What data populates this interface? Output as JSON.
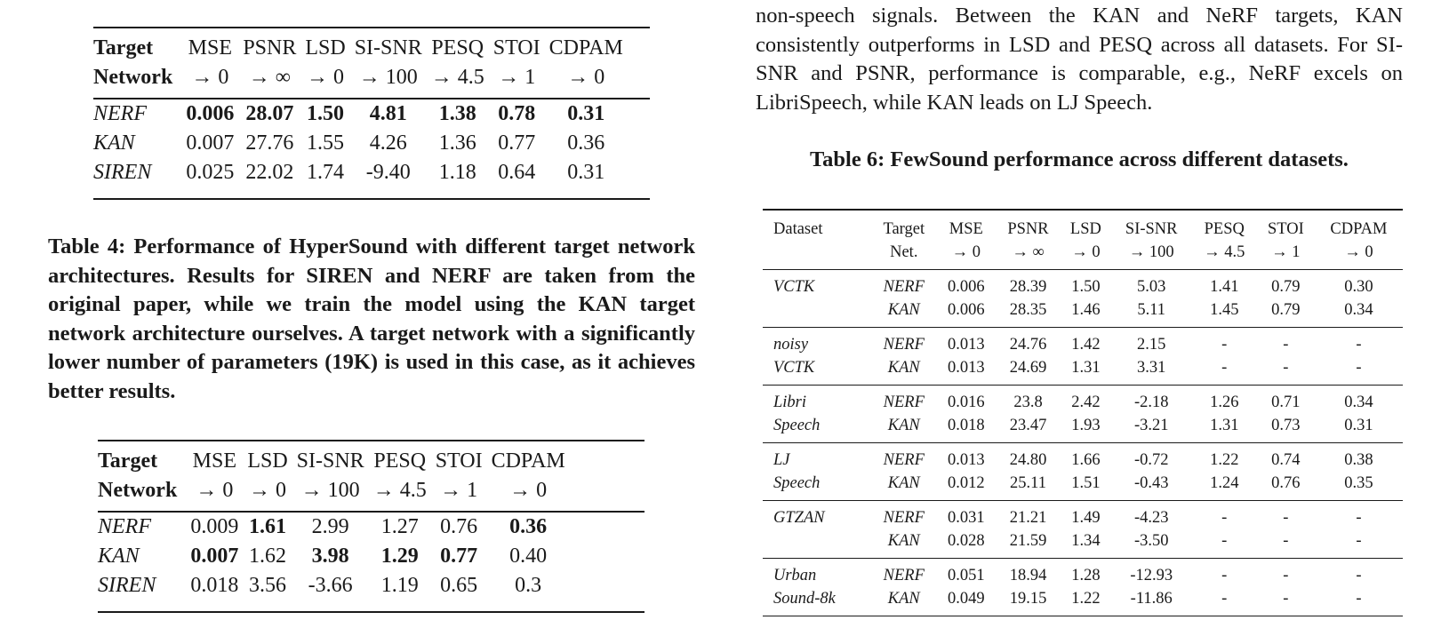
{
  "table3": {
    "header_row1": [
      "Target",
      "MSE",
      "PSNR",
      "LSD",
      "SI-SNR",
      "PESQ",
      "STOI",
      "CDPAM"
    ],
    "header_row2": [
      "Network",
      "→ 0",
      "→ ∞",
      "→ 0",
      "→ 100",
      "→ 4.5",
      "→ 1",
      "→ 0"
    ],
    "rows": [
      [
        "NERF",
        "0.006",
        "28.07",
        "1.50",
        "4.81",
        "1.38",
        "0.78",
        "0.31"
      ],
      [
        "KAN",
        "0.007",
        "27.76",
        "1.55",
        "4.26",
        "1.36",
        "0.77",
        "0.36"
      ],
      [
        "SIREN",
        "0.025",
        "22.02",
        "1.74",
        "-9.40",
        "1.18",
        "0.64",
        "0.31"
      ]
    ]
  },
  "table4_caption": "Table 4: Performance of HyperSound with different target network architectures. Results for SIREN and NERF are taken from the original paper, while we train the model using the KAN target network architecture ourselves. A target network with a significantly lower number of parameters (19K) is used in this case, as it achieves better results.",
  "table5": {
    "header_row1": [
      "Target",
      "MSE",
      "LSD",
      "SI-SNR",
      "PESQ",
      "STOI",
      "CDPAM"
    ],
    "header_row2": [
      "Network",
      "→ 0",
      "→ 0",
      "→ 100",
      "→ 4.5",
      "→ 1",
      "→ 0"
    ],
    "rows": [
      [
        "NERF",
        "0.009",
        "1.61",
        "2.99",
        "1.27",
        "0.76",
        "0.36"
      ],
      [
        "KAN",
        "0.007",
        "1.62",
        "3.98",
        "1.29",
        "0.77",
        "0.40"
      ],
      [
        "SIREN",
        "0.018",
        "3.56",
        "-3.66",
        "1.19",
        "0.65",
        "0.3"
      ]
    ]
  },
  "paragraph": "non-speech signals. Between the KAN and NeRF targets, KAN consistently outperforms in LSD and PESQ across all datasets. For SI-SNR and PSNR, performance is comparable, e.g., NeRF excels on LibriSpeech, while KAN leads on LJ Speech.",
  "table6_caption": "Table 6: FewSound performance across different datasets.",
  "table6": {
    "header_row1": [
      "Dataset",
      "Target",
      "MSE",
      "PSNR",
      "LSD",
      "SI-SNR",
      "PESQ",
      "STOI",
      "CDPAM"
    ],
    "header_row2": [
      "",
      "Net.",
      "→ 0",
      "→ ∞",
      "→ 0",
      "→ 100",
      "→ 4.5",
      "→ 1",
      "→ 0"
    ],
    "groups": [
      {
        "dataset": [
          "VCTK",
          ""
        ],
        "rows": [
          [
            "NERF",
            "0.006",
            "28.39",
            "1.50",
            "5.03",
            "1.41",
            "0.79",
            "0.30"
          ],
          [
            "KAN",
            "0.006",
            "28.35",
            "1.46",
            "5.11",
            "1.45",
            "0.79",
            "0.34"
          ]
        ]
      },
      {
        "dataset": [
          "noisy",
          "VCTK"
        ],
        "rows": [
          [
            "NERF",
            "0.013",
            "24.76",
            "1.42",
            "2.15",
            "-",
            "-",
            "-"
          ],
          [
            "KAN",
            "0.013",
            "24.69",
            "1.31",
            "3.31",
            "-",
            "-",
            "-"
          ]
        ]
      },
      {
        "dataset": [
          "Libri",
          "Speech"
        ],
        "rows": [
          [
            "NERF",
            "0.016",
            "23.8",
            "2.42",
            "-2.18",
            "1.26",
            "0.71",
            "0.34"
          ],
          [
            "KAN",
            "0.018",
            "23.47",
            "1.93",
            "-3.21",
            "1.31",
            "0.73",
            "0.31"
          ]
        ]
      },
      {
        "dataset": [
          "LJ",
          "Speech"
        ],
        "rows": [
          [
            "NERF",
            "0.013",
            "24.80",
            "1.66",
            "-0.72",
            "1.22",
            "0.74",
            "0.38"
          ],
          [
            "KAN",
            "0.012",
            "25.11",
            "1.51",
            "-0.43",
            "1.24",
            "0.76",
            "0.35"
          ]
        ]
      },
      {
        "dataset": [
          "GTZAN",
          ""
        ],
        "rows": [
          [
            "NERF",
            "0.031",
            "21.21",
            "1.49",
            "-4.23",
            "-",
            "-",
            "-"
          ],
          [
            "KAN",
            "0.028",
            "21.59",
            "1.34",
            "-3.50",
            "-",
            "-",
            "-"
          ]
        ]
      },
      {
        "dataset": [
          "Urban",
          "Sound-8k"
        ],
        "rows": [
          [
            "NERF",
            "0.051",
            "18.94",
            "1.28",
            "-12.93",
            "-",
            "-",
            "-"
          ],
          [
            "KAN",
            "0.049",
            "19.15",
            "1.22",
            "-11.86",
            "-",
            "-",
            "-"
          ]
        ]
      }
    ]
  }
}
